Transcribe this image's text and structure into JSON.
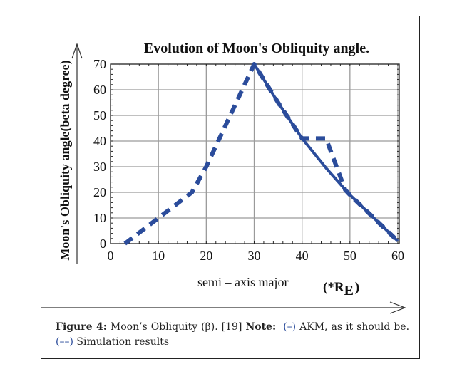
{
  "chart_data": {
    "type": "line",
    "title": "Evolution of Moon's Obliquity angle.",
    "xlabel": "semi – axis major",
    "xlabel_unit_prefix": "(*R",
    "xlabel_unit_sub": "E",
    "xlabel_unit_suffix": ")",
    "ylabel": "Moon's Obliquity angle(beta degree)",
    "xlim": [
      0,
      61
    ],
    "ylim": [
      0,
      70
    ],
    "xticks": [
      0,
      10,
      20,
      30,
      40,
      50,
      60
    ],
    "yticks": [
      0,
      10,
      20,
      30,
      40,
      50,
      60,
      70
    ],
    "grid": true,
    "series": [
      {
        "name": "AKM, as it should be",
        "style": "solid",
        "color": "#2b4c9b",
        "x": [
          30,
          35,
          40,
          45,
          50,
          55,
          60
        ],
        "y": [
          70,
          55,
          41,
          29.5,
          19,
          10,
          1
        ]
      },
      {
        "name": "Simulation results",
        "style": "dashed",
        "color": "#2b4c9b",
        "x": [
          3,
          10,
          17,
          20,
          25,
          30,
          35,
          40,
          45,
          49,
          50,
          55,
          60
        ],
        "y": [
          0,
          10,
          20,
          30,
          50,
          70,
          55,
          41,
          41,
          21,
          19,
          10,
          1
        ]
      }
    ]
  },
  "caption": {
    "figure_label": "Figure 4:",
    "figure_text": " Moon’s Obliquity (β). [19] ",
    "note_label": "Note:",
    "solid_marker": "(–)",
    "solid_text": " AKM, as it should be. ",
    "dashed_marker": "(––)",
    "dashed_text": " Simulation results"
  }
}
